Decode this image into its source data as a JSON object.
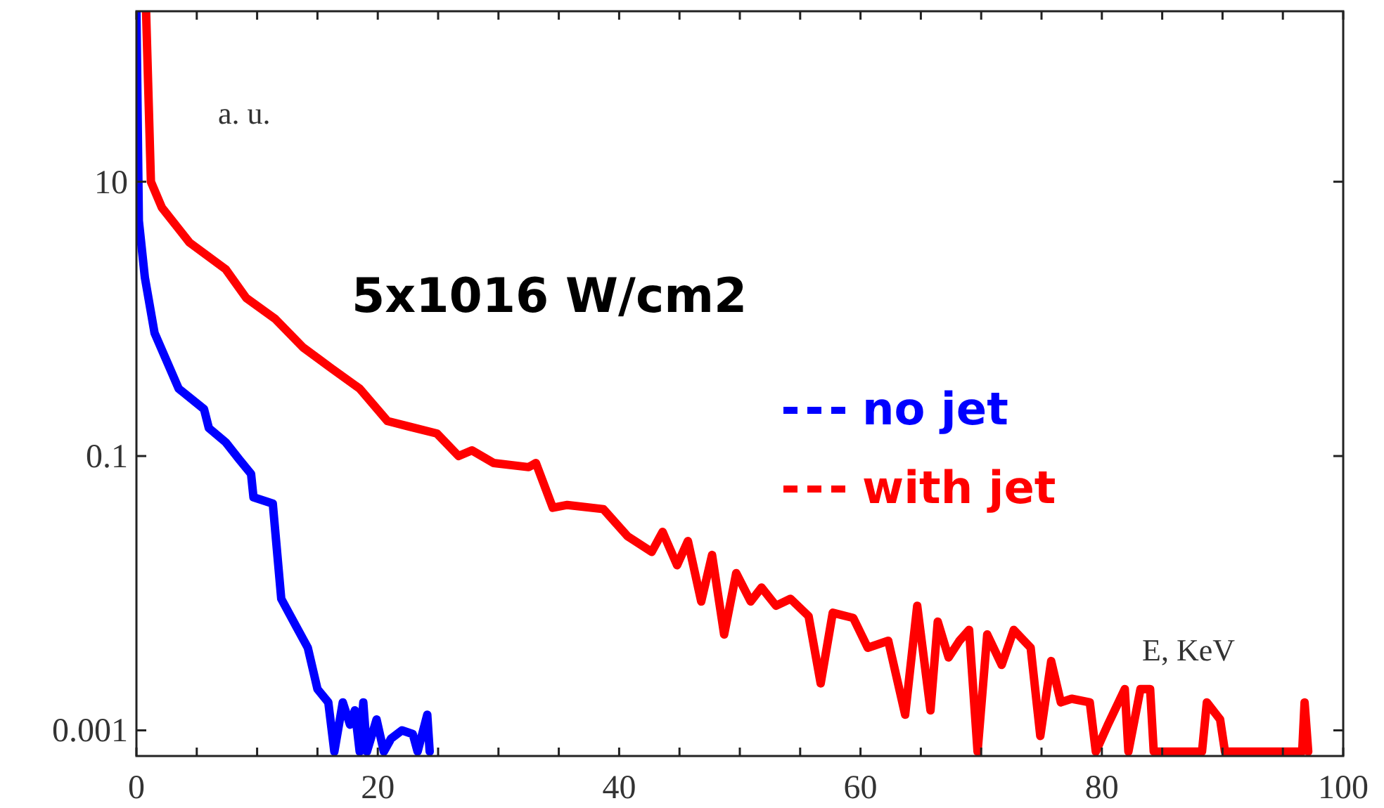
{
  "chart_data": {
    "type": "line",
    "title": "5x1016 W/cm2",
    "xlabel": "E, KeV",
    "ylabel": "a. u.",
    "log": "y",
    "grid": false,
    "legend": "right",
    "line_style": "solid",
    "xlim": [
      0,
      100
    ],
    "xticks": [
      0,
      {
        "value": 5,
        "label": null
      },
      {
        "value": 10,
        "label": null
      },
      {
        "value": 15,
        "label": null
      },
      20,
      {
        "value": 25,
        "label": null
      },
      {
        "value": 30,
        "label": null
      },
      {
        "value": 35,
        "label": null
      },
      40,
      {
        "value": 45,
        "label": null
      },
      {
        "value": 50,
        "label": null
      },
      {
        "value": 55,
        "label": null
      },
      60,
      {
        "value": 65,
        "label": null
      },
      {
        "value": 70,
        "label": null
      },
      {
        "value": 75,
        "label": null
      },
      80,
      {
        "value": 85,
        "label": null
      },
      {
        "value": 90,
        "label": null
      },
      {
        "value": 95,
        "label": null
      },
      100
    ],
    "ylim": [
      0.00065,
      175
    ],
    "yticks": [
      0.001,
      0.1,
      10
    ],
    "series": [
      {
        "name": "no jet",
        "color": "#0000ff",
        "x": [
          0,
          0.2,
          0.7,
          1.5,
          3.5,
          5.6,
          6,
          7.4,
          8.5,
          9.5,
          9.7,
          11.3,
          12,
          13.2,
          14.2,
          15,
          15.9,
          16.4,
          17.1,
          17.7,
          18.1,
          18.5,
          18.8,
          19.1,
          19.9,
          20.5,
          21.1,
          22,
          22.9,
          23.3,
          24.1,
          24.3
        ],
        "values": [
          175,
          5.2,
          2,
          0.79,
          0.31,
          0.22,
          0.16,
          0.126,
          0.095,
          0.074,
          0.05,
          0.045,
          0.0091,
          0.0058,
          0.004,
          0.002,
          0.0016,
          0.0007,
          0.0016,
          0.0011,
          0.0014,
          0.0007,
          0.0016,
          0.0007,
          0.0012,
          0.0007,
          0.00087,
          0.001,
          0.00094,
          0.0007,
          0.0013,
          0.0007
        ]
      },
      {
        "name": "with jet",
        "color": "#ff0000",
        "x": [
          0.8,
          1.2,
          2.1,
          4.4,
          7.4,
          9.1,
          11.5,
          13.8,
          16.1,
          18.5,
          20.8,
          22.6,
          24.9,
          26.7,
          27.8,
          29.6,
          32.5,
          33.1,
          34.5,
          35.7,
          38.7,
          40.7,
          42.7,
          43.6,
          44.8,
          45.7,
          46.8,
          47.7,
          48.7,
          49.7,
          50.9,
          51.8,
          53,
          54.2,
          55.7,
          56.7,
          57.7,
          59.4,
          60.6,
          62.3,
          63.7,
          64.7,
          65.8,
          66.4,
          67.3,
          68.2,
          69,
          69.7,
          70.5,
          71.7,
          72.7,
          74.1,
          74.9,
          75.8,
          76.6,
          77.5,
          79,
          79.5,
          80.5,
          81.9,
          82.2,
          83.2,
          84,
          84.3,
          88.3,
          88.7,
          89.8,
          90.2,
          96.6,
          96.8,
          97.1
        ],
        "values": [
          175,
          10,
          6.5,
          3.6,
          2.3,
          1.42,
          1,
          0.62,
          0.44,
          0.31,
          0.18,
          0.164,
          0.146,
          0.1,
          0.11,
          0.089,
          0.083,
          0.089,
          0.042,
          0.044,
          0.041,
          0.026,
          0.02,
          0.028,
          0.016,
          0.024,
          0.0087,
          0.019,
          0.005,
          0.014,
          0.0087,
          0.011,
          0.0081,
          0.0091,
          0.0068,
          0.0022,
          0.0072,
          0.0066,
          0.004,
          0.0045,
          0.0013,
          0.0081,
          0.0014,
          0.0062,
          0.0034,
          0.0045,
          0.0054,
          0.0007,
          0.005,
          0.003,
          0.0054,
          0.004,
          0.00091,
          0.0032,
          0.0016,
          0.0017,
          0.0016,
          0.0007,
          0.0011,
          0.002,
          0.0007,
          0.002,
          0.002,
          0.0007,
          0.0007,
          0.0016,
          0.0012,
          0.0007,
          0.0007,
          0.0016,
          0.0007
        ]
      }
    ]
  }
}
